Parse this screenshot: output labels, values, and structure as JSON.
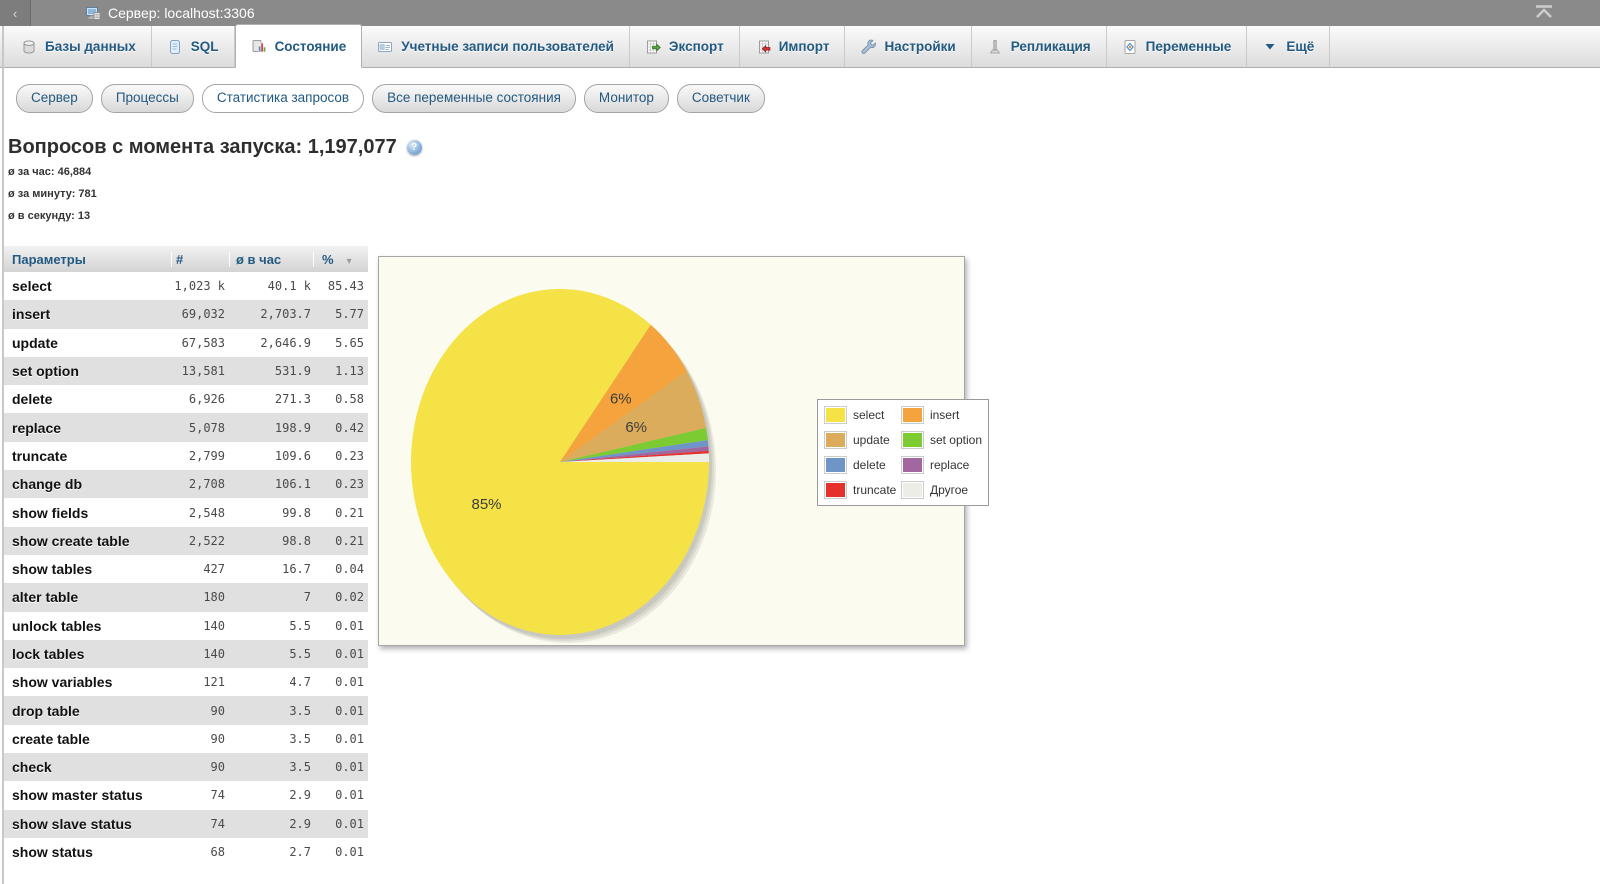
{
  "titlebar": {
    "collapse_icon": "‹",
    "title": "Сервер: localhost:3306"
  },
  "tabs": [
    {
      "name": "databases",
      "icon": "database-icon",
      "label": "Базы данных",
      "active": false
    },
    {
      "name": "sql",
      "icon": "sql-icon",
      "label": "SQL",
      "active": false
    },
    {
      "name": "status",
      "icon": "status-icon",
      "label": "Состояние",
      "active": true
    },
    {
      "name": "user-accounts",
      "icon": "users-icon",
      "label": "Учетные записи пользователей",
      "active": false
    },
    {
      "name": "export",
      "icon": "export-icon",
      "label": "Экспорт",
      "active": false
    },
    {
      "name": "import",
      "icon": "import-icon",
      "label": "Импорт",
      "active": false
    },
    {
      "name": "settings",
      "icon": "settings-icon",
      "label": "Настройки",
      "active": false
    },
    {
      "name": "replication",
      "icon": "replication-icon",
      "label": "Репликация",
      "active": false
    },
    {
      "name": "variables",
      "icon": "variables-icon",
      "label": "Переменные",
      "active": false
    },
    {
      "name": "more",
      "icon": "more-icon",
      "label": "Ещё",
      "active": false
    }
  ],
  "subtabs": [
    {
      "name": "server",
      "label": "Сервер",
      "active": false
    },
    {
      "name": "processes",
      "label": "Процессы",
      "active": false
    },
    {
      "name": "query-statistics",
      "label": "Статистика запросов",
      "active": true
    },
    {
      "name": "all-status-variables",
      "label": "Все переменные состояния",
      "active": false
    },
    {
      "name": "monitor",
      "label": "Монитор",
      "active": false
    },
    {
      "name": "advisor",
      "label": "Советчик",
      "active": false
    }
  ],
  "page": {
    "heading": "Вопросов с момента запуска: 1,197,077",
    "help_icon_glyph": "?",
    "stats": [
      "ø за час: 46,884",
      "ø за минуту: 781",
      "ø в секунду: 13"
    ]
  },
  "table": {
    "headers": [
      "Параметры",
      "#",
      "ø в час",
      "%"
    ],
    "sort_icon": "▾",
    "rows": [
      [
        "select",
        "1,023 k",
        "40.1 k",
        "85.43"
      ],
      [
        "insert",
        "69,032",
        "2,703.7",
        "5.77"
      ],
      [
        "update",
        "67,583",
        "2,646.9",
        "5.65"
      ],
      [
        "set option",
        "13,581",
        "531.9",
        "1.13"
      ],
      [
        "delete",
        "6,926",
        "271.3",
        "0.58"
      ],
      [
        "replace",
        "5,078",
        "198.9",
        "0.42"
      ],
      [
        "truncate",
        "2,799",
        "109.6",
        "0.23"
      ],
      [
        "change db",
        "2,708",
        "106.1",
        "0.23"
      ],
      [
        "show fields",
        "2,548",
        "99.8",
        "0.21"
      ],
      [
        "show create table",
        "2,522",
        "98.8",
        "0.21"
      ],
      [
        "show tables",
        "427",
        "16.7",
        "0.04"
      ],
      [
        "alter table",
        "180",
        "7",
        "0.02"
      ],
      [
        "unlock tables",
        "140",
        "5.5",
        "0.01"
      ],
      [
        "lock tables",
        "140",
        "5.5",
        "0.01"
      ],
      [
        "show variables",
        "121",
        "4.7",
        "0.01"
      ],
      [
        "drop table",
        "90",
        "3.5",
        "0.01"
      ],
      [
        "create table",
        "90",
        "3.5",
        "0.01"
      ],
      [
        "check",
        "90",
        "3.5",
        "0.01"
      ],
      [
        "show master status",
        "74",
        "2.9",
        "0.01"
      ],
      [
        "show slave status",
        "74",
        "2.9",
        "0.01"
      ],
      [
        "show status",
        "68",
        "2.7",
        "0.01"
      ]
    ]
  },
  "chart_data": {
    "type": "pie",
    "title": "",
    "start_angle_deg": 0,
    "direction": "clockwise",
    "legend_position": "right-overlay",
    "background": "#fbfbef",
    "slices": [
      {
        "label": "select",
        "pct": 85.43,
        "display": "85%",
        "color": "#F5E246"
      },
      {
        "label": "insert",
        "pct": 5.77,
        "display": "6%",
        "color": "#F5A33C"
      },
      {
        "label": "update",
        "pct": 5.65,
        "display": "6%",
        "color": "#DCAC5D"
      },
      {
        "label": "set option",
        "pct": 1.13,
        "display": "",
        "color": "#7CCB33"
      },
      {
        "label": "delete",
        "pct": 0.58,
        "display": "",
        "color": "#6F95C8"
      },
      {
        "label": "replace",
        "pct": 0.42,
        "display": "",
        "color": "#A2679E"
      },
      {
        "label": "truncate",
        "pct": 0.23,
        "display": "",
        "color": "#E6302B"
      },
      {
        "label": "Другое",
        "pct": 0.79,
        "display": "",
        "color": "#EDEDE8"
      }
    ]
  }
}
